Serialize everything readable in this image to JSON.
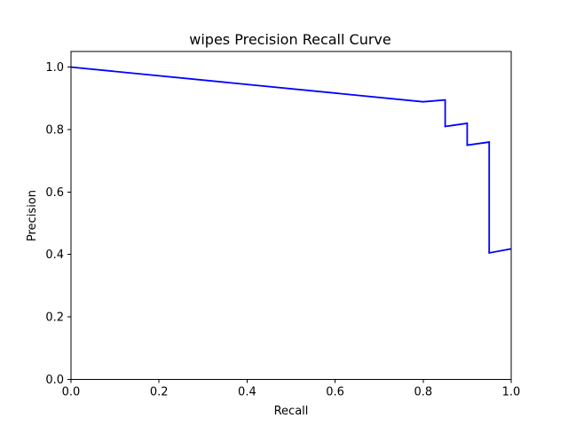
{
  "chart_data": {
    "type": "line",
    "title": "wipes Precision Recall Curve",
    "xlabel": "Recall",
    "ylabel": "Precision",
    "xlim": [
      0,
      1
    ],
    "ylim": [
      0,
      1.05
    ],
    "xticks": [
      0.0,
      0.2,
      0.4,
      0.6,
      0.8,
      1.0
    ],
    "xtick_labels": [
      "0.0",
      "0.2",
      "0.4",
      "0.6",
      "0.8",
      "1.0"
    ],
    "yticks": [
      0.0,
      0.2,
      0.4,
      0.6,
      0.8,
      1.0
    ],
    "ytick_labels": [
      "0.0",
      "0.2",
      "0.4",
      "0.6",
      "0.8",
      "1.0"
    ],
    "grid": false,
    "series": [
      {
        "color": "#0000ff",
        "x": [
          0.0,
          0.8,
          0.85,
          0.85,
          0.9,
          0.9,
          0.95,
          0.95,
          1.0
        ],
        "y": [
          1.0,
          0.889,
          0.895,
          0.81,
          0.82,
          0.75,
          0.76,
          0.405,
          0.418
        ]
      }
    ]
  }
}
